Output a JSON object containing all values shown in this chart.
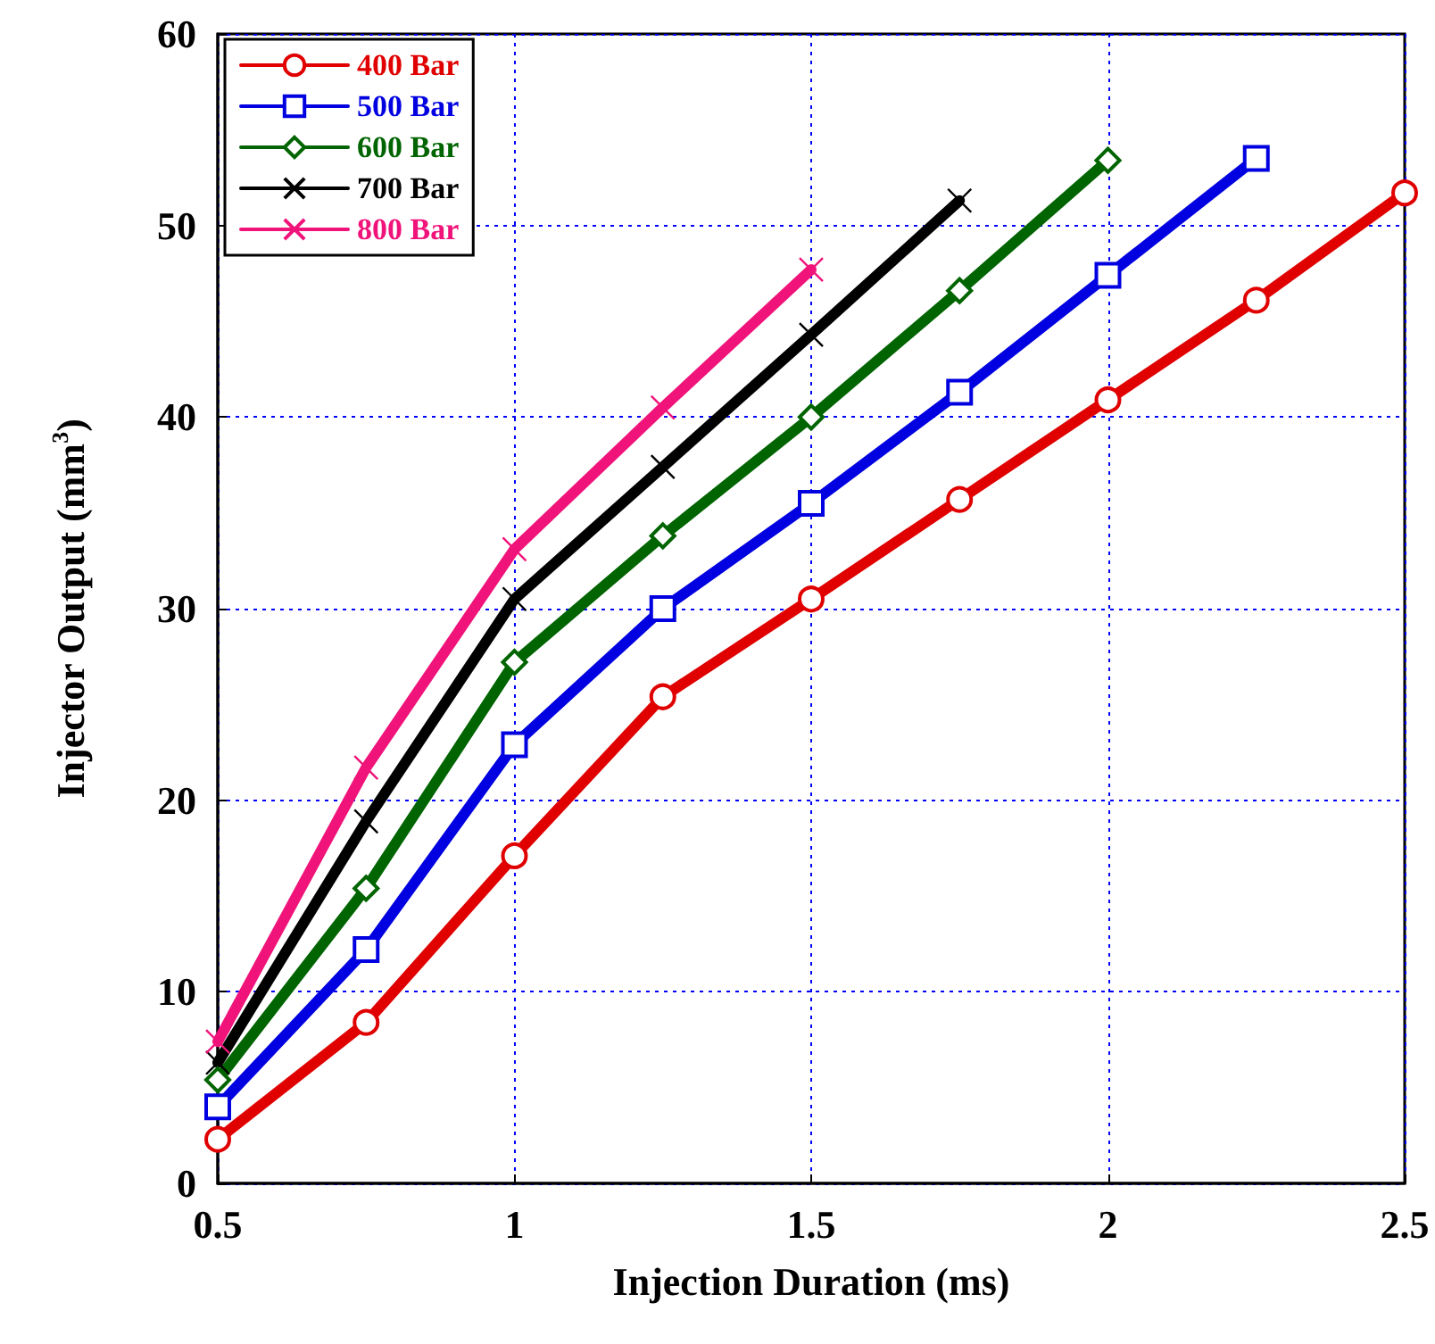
{
  "chart_data": {
    "type": "line",
    "xlabel": "Injection Duration (ms)",
    "ylabel": "Injector Output (mm$^{3}$)",
    "xlim": [
      0.5,
      2.5
    ],
    "xticks": [
      0.5,
      1,
      1.5,
      2,
      2.5
    ],
    "ylim": [
      0,
      60
    ],
    "yticks": [
      0,
      10,
      20,
      30,
      40,
      50,
      60
    ],
    "grid": true,
    "legend": "top left",
    "line_style": "solid",
    "series": [
      {
        "name": "400 Bar",
        "color": "#e00000",
        "marker": "circle",
        "x": [
          0.5,
          0.75,
          1,
          1.25,
          1.5,
          1.75,
          2,
          2.25,
          2.5
        ],
        "values": [
          2.3,
          8.4,
          17.1,
          25.4,
          30.5,
          35.7,
          40.9,
          46.1,
          51.7
        ]
      },
      {
        "name": "500 Bar",
        "color": "#0000e0",
        "marker": "square",
        "x": [
          0.5,
          0.75,
          1,
          1.25,
          1.5,
          1.75,
          2,
          2.25
        ],
        "values": [
          4.0,
          12.2,
          22.9,
          30.0,
          35.5,
          41.3,
          47.4,
          53.5
        ]
      },
      {
        "name": "600 Bar",
        "color": "#006400",
        "marker": "diamond",
        "x": [
          0.5,
          0.75,
          1,
          1.25,
          1.5,
          1.75,
          2
        ],
        "values": [
          5.4,
          15.4,
          27.2,
          33.8,
          40.0,
          46.6,
          53.4
        ]
      },
      {
        "name": "700 Bar",
        "color": "#000000",
        "marker": "cross",
        "x": [
          0.5,
          0.75,
          1,
          1.25,
          1.5,
          1.75
        ],
        "values": [
          6.3,
          18.9,
          30.5,
          37.4,
          44.3,
          51.3
        ]
      },
      {
        "name": "800 Bar",
        "color": "#f0147a",
        "marker": "cross",
        "x": [
          0.5,
          0.75,
          1,
          1.25,
          1.5
        ],
        "values": [
          7.4,
          21.7,
          33.1,
          40.5,
          47.7
        ]
      }
    ]
  }
}
